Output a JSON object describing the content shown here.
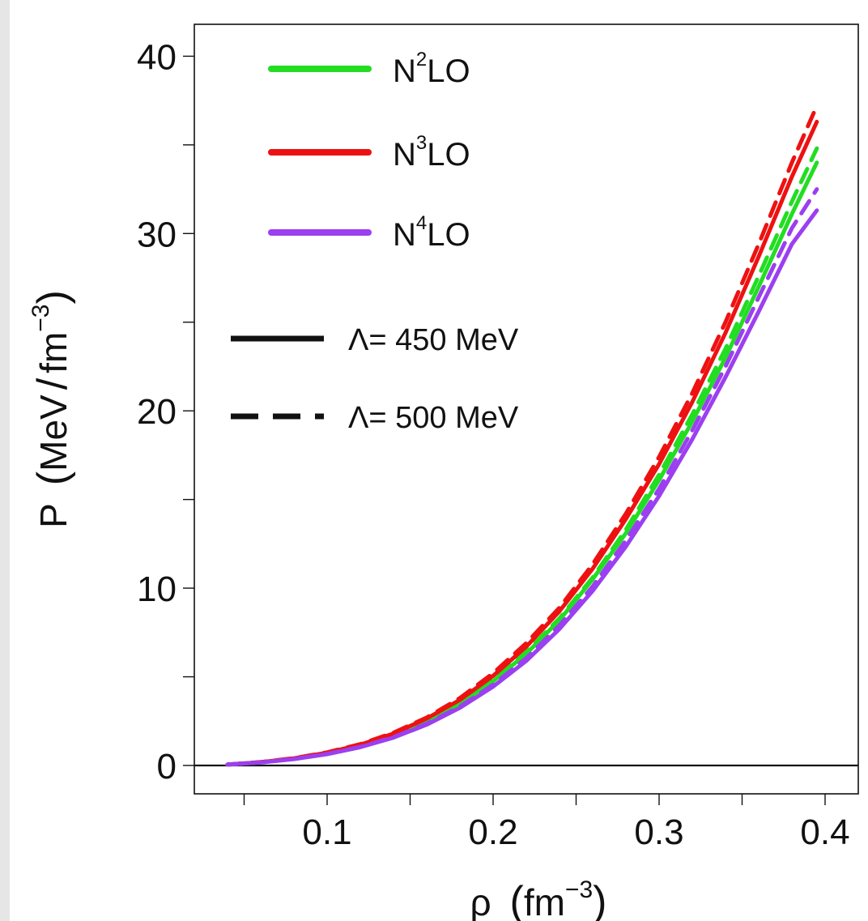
{
  "chart_data": {
    "type": "line",
    "xlabel_main": "ρ",
    "xlabel_unit": "fm",
    "xlabel_exp": "−3",
    "ylabel_main": "P",
    "ylabel_unit": "MeV",
    "ylabel_slash": "/",
    "ylabel_unit2": "fm",
    "ylabel_exp": "−3",
    "xlim": [
      0.02,
      0.42
    ],
    "ylim": [
      -1.6,
      41.8
    ],
    "x_ticks": [
      {
        "value": 0.05,
        "label": ""
      },
      {
        "value": 0.1,
        "label": "0.1"
      },
      {
        "value": 0.15,
        "label": ""
      },
      {
        "value": 0.2,
        "label": "0.2"
      },
      {
        "value": 0.25,
        "label": ""
      },
      {
        "value": 0.3,
        "label": "0.3"
      },
      {
        "value": 0.35,
        "label": ""
      },
      {
        "value": 0.4,
        "label": "0.4"
      }
    ],
    "y_ticks": [
      {
        "value": 0,
        "label": "0"
      },
      {
        "value": 5,
        "label": ""
      },
      {
        "value": 10,
        "label": "10"
      },
      {
        "value": 15,
        "label": ""
      },
      {
        "value": 20,
        "label": "20"
      },
      {
        "value": 25,
        "label": ""
      },
      {
        "value": 30,
        "label": "30"
      },
      {
        "value": 35,
        "label": ""
      },
      {
        "value": 40,
        "label": "40"
      }
    ],
    "zero_line": 0,
    "grid": false,
    "legend_placement": "top-left",
    "legend_orders": [
      {
        "base": "N",
        "sup": "2",
        "rest": "LO",
        "color": "#22dd22"
      },
      {
        "base": "N",
        "sup": "3",
        "rest": "LO",
        "color": "#ee1111"
      },
      {
        "base": "N",
        "sup": "4",
        "rest": "LO",
        "color": "#9b3ff0"
      }
    ],
    "legend_styles": [
      {
        "label": "Λ= 450 MeV",
        "dash": "solid"
      },
      {
        "label": "Λ= 500 MeV",
        "dash": "dashed"
      }
    ],
    "x": [
      0.04,
      0.06,
      0.08,
      0.1,
      0.12,
      0.14,
      0.16,
      0.18,
      0.2,
      0.22,
      0.24,
      0.26,
      0.28,
      0.3,
      0.32,
      0.34,
      0.36,
      0.38,
      0.395
    ],
    "series": [
      {
        "order": "N2LO",
        "cutoff": "450",
        "dash": "solid",
        "color": "#22dd22",
        "values": [
          0.05,
          0.18,
          0.38,
          0.68,
          1.1,
          1.7,
          2.5,
          3.5,
          4.75,
          6.3,
          8.2,
          10.5,
          13.1,
          16.1,
          19.4,
          23.0,
          27.0,
          31.1,
          34.0
        ]
      },
      {
        "order": "N2LO",
        "cutoff": "500",
        "dash": "dashed",
        "color": "#22dd22",
        "values": [
          0.05,
          0.18,
          0.38,
          0.68,
          1.1,
          1.7,
          2.5,
          3.5,
          4.8,
          6.4,
          8.3,
          10.6,
          13.3,
          16.4,
          19.8,
          23.5,
          27.6,
          31.8,
          34.8
        ]
      },
      {
        "order": "N3LO",
        "cutoff": "450",
        "dash": "solid",
        "color": "#ee1111",
        "values": [
          0.05,
          0.18,
          0.4,
          0.72,
          1.17,
          1.8,
          2.65,
          3.7,
          5.05,
          6.7,
          8.7,
          11.1,
          13.9,
          17.0,
          20.5,
          24.4,
          28.7,
          33.2,
          36.3
        ]
      },
      {
        "order": "N3LO",
        "cutoff": "500",
        "dash": "dashed",
        "color": "#ee1111",
        "values": [
          0.05,
          0.19,
          0.41,
          0.74,
          1.2,
          1.85,
          2.7,
          3.8,
          5.2,
          6.9,
          8.9,
          11.35,
          14.2,
          17.4,
          21.0,
          25.0,
          29.4,
          34.0,
          37.2
        ]
      },
      {
        "order": "N4LO",
        "cutoff": "450",
        "dash": "solid",
        "color": "#9b3ff0",
        "values": [
          0.05,
          0.17,
          0.36,
          0.64,
          1.03,
          1.57,
          2.3,
          3.25,
          4.45,
          5.9,
          7.7,
          9.85,
          12.35,
          15.2,
          18.4,
          21.9,
          25.6,
          29.4,
          31.3
        ]
      },
      {
        "order": "N4LO",
        "cutoff": "500",
        "dash": "dashed",
        "color": "#9b3ff0",
        "values": [
          0.05,
          0.17,
          0.37,
          0.65,
          1.05,
          1.6,
          2.35,
          3.32,
          4.55,
          6.05,
          7.9,
          10.1,
          12.7,
          15.6,
          18.9,
          22.5,
          26.4,
          30.3,
          32.5
        ]
      }
    ]
  }
}
